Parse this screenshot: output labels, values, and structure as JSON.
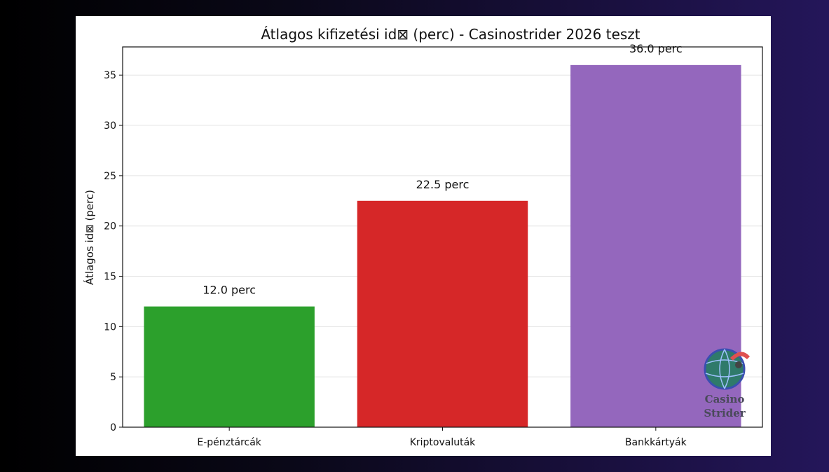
{
  "chart_data": {
    "type": "bar",
    "title": "Átlagos kifizetési id⊠ (perc) - Casinostrider 2026 teszt",
    "xlabel": "",
    "ylabel": "Átlagos id⊠ (perc)",
    "categories": [
      "E-pénztárcák",
      "Kriptovaluták",
      "Bankkártyák"
    ],
    "values": [
      12.0,
      22.5,
      36.0
    ],
    "data_labels": [
      "12.0 perc",
      "22.5 perc",
      "36.0 perc"
    ],
    "colors": [
      "#2ca02c",
      "#d62728",
      "#9467bd"
    ],
    "ylim": [
      0,
      37.8
    ],
    "yticks": [
      0,
      5,
      10,
      15,
      20,
      25,
      30,
      35
    ],
    "grid": "horizontal",
    "legend": "none"
  },
  "watermark": {
    "line1": "Casino",
    "line2": "Strider",
    "icon": "globe-logo-icon"
  }
}
